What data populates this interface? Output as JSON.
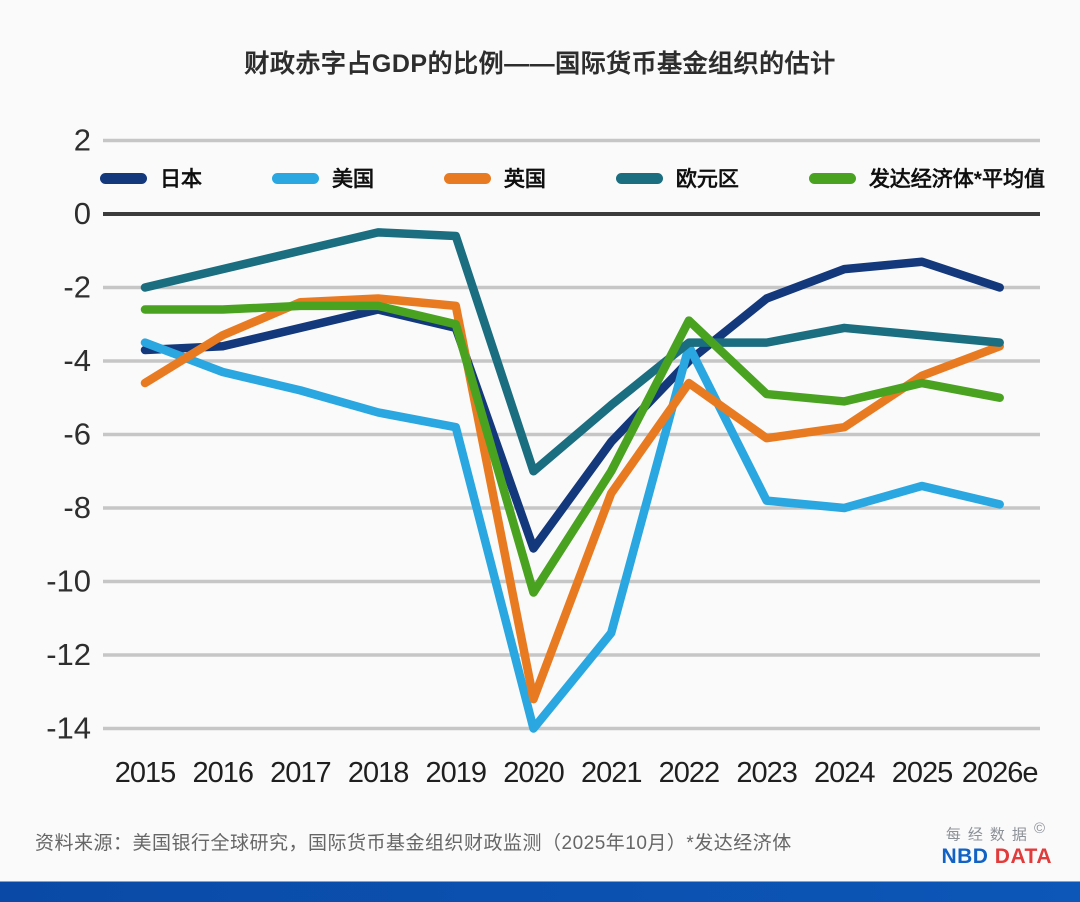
{
  "title": "财政赤字占GDP的比例——国际货币基金组织的估计",
  "footer": {
    "source": "资料来源：美国银行全球研究，国际货币基金组织财政监测（2025年10月）*发达经济体",
    "logo": {
      "cn": "每经数据",
      "copyright": "©",
      "blue": "NBD",
      "red": "DATA"
    }
  },
  "colors": {
    "background": "#fafafa",
    "grid": "#c6c6c6",
    "zero_line": "#3b3b3b",
    "tick_text": "#2e2e2e",
    "logo_blue": "#1262c6",
    "logo_red": "#e23b3b",
    "logo_gray": "#8d9298",
    "bottom_bar_left": "#0a4aa6",
    "bottom_bar_right": "#0c57b8"
  },
  "chart_data": {
    "type": "line",
    "title": "财政赤字占GDP的比例——国际货币基金组织的估计",
    "xlabel": "",
    "ylabel": "",
    "ylim": [
      -14,
      2
    ],
    "yticks": [
      2,
      0,
      -2,
      -4,
      -6,
      -8,
      -10,
      -12,
      -14
    ],
    "grid": true,
    "legend_position": "top",
    "categories": [
      "2015",
      "2016",
      "2017",
      "2018",
      "2019",
      "2020",
      "2021",
      "2022",
      "2023",
      "2024",
      "2025",
      "2026e"
    ],
    "series": [
      {
        "name": "日本",
        "color": "#14387c",
        "values": [
          -3.7,
          -3.6,
          -3.1,
          -2.6,
          -3.1,
          -9.1,
          -6.2,
          -4.0,
          -2.3,
          -1.5,
          -1.3,
          -2.0
        ]
      },
      {
        "name": "美国",
        "color": "#2aa7e0",
        "values": [
          -3.5,
          -4.3,
          -4.8,
          -5.4,
          -5.8,
          -14.0,
          -11.4,
          -3.6,
          -7.8,
          -8.0,
          -7.4,
          -7.9
        ]
      },
      {
        "name": "英国",
        "color": "#e87b22",
        "values": [
          -4.6,
          -3.3,
          -2.4,
          -2.3,
          -2.5,
          -13.2,
          -7.6,
          -4.6,
          -6.1,
          -5.8,
          -4.4,
          -3.6
        ]
      },
      {
        "name": "欧元区",
        "color": "#1b6d80",
        "values": [
          -2.0,
          -1.5,
          -1.0,
          -0.5,
          -0.6,
          -7.0,
          -5.2,
          -3.5,
          -3.5,
          -3.1,
          -3.3,
          -3.5
        ]
      },
      {
        "name": "发达经济体*平均值",
        "color": "#4aa221",
        "values": [
          -2.6,
          -2.6,
          -2.5,
          -2.5,
          -3.0,
          -10.3,
          -7.0,
          -2.9,
          -4.9,
          -5.1,
          -4.6,
          -5.0
        ]
      }
    ]
  }
}
